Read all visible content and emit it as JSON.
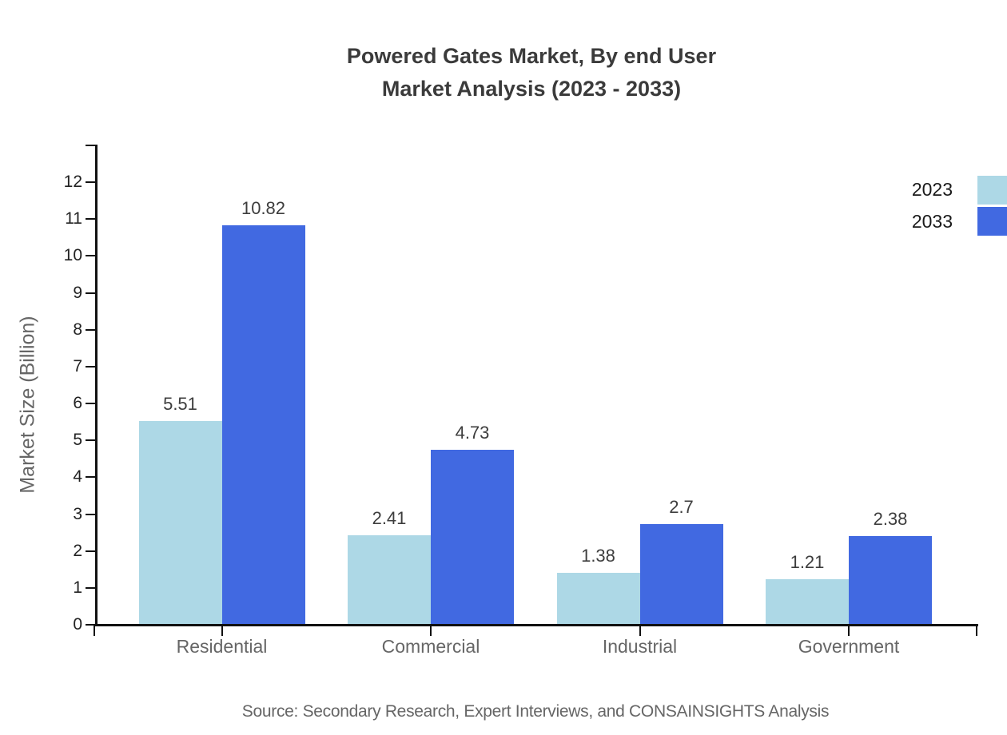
{
  "title": {
    "line1": "Powered Gates Market, By end User",
    "line2": "Market Analysis (2023 - 2033)"
  },
  "source": "Source: Secondary Research, Expert Interviews, and CONSAINSIGHTS Analysis",
  "chart_data": {
    "type": "bar",
    "categories": [
      "Residential",
      "Commercial",
      "Industrial",
      "Government"
    ],
    "series": [
      {
        "name": "2023",
        "color": "#ADD8E6",
        "values": [
          5.51,
          2.41,
          1.38,
          1.21
        ]
      },
      {
        "name": "2033",
        "color": "#4169E1",
        "values": [
          10.82,
          4.73,
          2.7,
          2.38
        ]
      }
    ],
    "xlabel": "",
    "ylabel": "Market Size (Billion)",
    "yticks": [
      0,
      1,
      2,
      3,
      4,
      5,
      6,
      7,
      8,
      9,
      10,
      11,
      12
    ],
    "ylim": [
      0,
      13
    ],
    "grid": false,
    "legend_position": "top-right",
    "value_labels": true
  }
}
